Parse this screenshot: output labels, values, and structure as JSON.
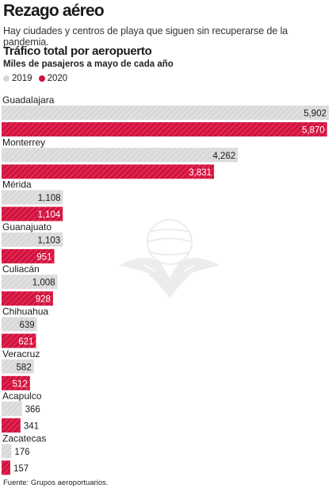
{
  "header": {
    "title": "Rezago aéreo",
    "subtitle": "Hay ciudades y centros de playa que siguen sin recuperarse de la pandemia."
  },
  "source": "Fuente: Grupos aeroportuarios.",
  "colors": {
    "y2019": "#d7d7d7",
    "y2020": "#d4123f",
    "text": "#1a1a1a"
  },
  "chart_data": {
    "type": "bar",
    "orientation": "horizontal",
    "title": "Tráfico total por aeropuerto",
    "ylabel": "Miles de pasajeros a mayo de cada año",
    "legend": [
      "2019",
      "2020"
    ],
    "legend_position": "top-left",
    "categories": [
      "Guadalajara",
      "Monterrey",
      "Mérida",
      "Guanajuato",
      "Culiacán",
      "Chihuahua",
      "Veracruz",
      "Acapulco",
      "Zacatecas"
    ],
    "series": [
      {
        "name": "2019",
        "values": [
          5902,
          4262,
          1108,
          1103,
          1008,
          639,
          582,
          366,
          176
        ],
        "labels": [
          "5,902",
          "4,262",
          "1,108",
          "1,103",
          "1,008",
          "639",
          "582",
          "366",
          "176"
        ]
      },
      {
        "name": "2020",
        "values": [
          5870,
          3831,
          1104,
          951,
          928,
          621,
          512,
          341,
          157
        ],
        "labels": [
          "5,870",
          "3,831",
          "1,104",
          "951",
          "928",
          "621",
          "512",
          "341",
          "157"
        ]
      }
    ],
    "xlim": [
      0,
      5902
    ],
    "grid": false
  }
}
